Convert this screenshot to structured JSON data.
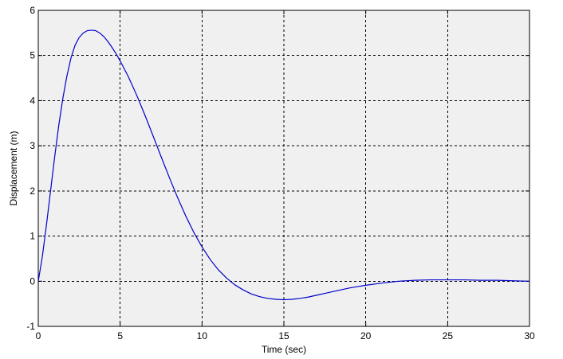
{
  "chart_data": {
    "type": "line",
    "title": "",
    "xlabel": "Time (sec)",
    "ylabel": "Displacement (m)",
    "xlim": [
      0,
      30
    ],
    "ylim": [
      -1,
      6
    ],
    "xticks": [
      0,
      5,
      10,
      15,
      20,
      25,
      30
    ],
    "yticks": [
      -1,
      0,
      1,
      2,
      3,
      4,
      5,
      6
    ],
    "grid": true,
    "grid_style": "dashed",
    "background_color": "#f0f0f0",
    "line_color": "#0000cc",
    "series": [
      {
        "x": [
          0,
          0.25,
          0.5,
          0.75,
          1,
          1.25,
          1.5,
          1.75,
          2,
          2.25,
          2.5,
          2.75,
          3,
          3.25,
          3.5,
          3.75,
          4,
          4.25,
          4.5,
          4.75,
          5,
          5.5,
          6,
          6.5,
          7,
          7.5,
          8,
          8.5,
          9,
          9.5,
          10,
          10.5,
          11,
          11.5,
          12,
          12.5,
          13,
          13.5,
          14,
          14.5,
          15,
          15.5,
          16,
          16.5,
          17,
          17.5,
          18,
          18.5,
          19,
          19.5,
          20,
          21,
          22,
          23,
          24,
          25,
          26,
          27,
          28,
          29,
          30
        ],
        "y": [
          0,
          0.55,
          1.25,
          2.0,
          2.75,
          3.45,
          4.05,
          4.55,
          4.95,
          5.23,
          5.4,
          5.5,
          5.55,
          5.56,
          5.55,
          5.5,
          5.42,
          5.31,
          5.18,
          5.04,
          4.88,
          4.53,
          4.13,
          3.69,
          3.23,
          2.76,
          2.3,
          1.86,
          1.45,
          1.08,
          0.76,
          0.48,
          0.25,
          0.07,
          -0.08,
          -0.19,
          -0.28,
          -0.34,
          -0.38,
          -0.4,
          -0.41,
          -0.4,
          -0.38,
          -0.35,
          -0.31,
          -0.27,
          -0.23,
          -0.19,
          -0.15,
          -0.12,
          -0.09,
          -0.04,
          0.0,
          0.02,
          0.03,
          0.03,
          0.03,
          0.02,
          0.02,
          0.01,
          0.0
        ]
      }
    ]
  }
}
